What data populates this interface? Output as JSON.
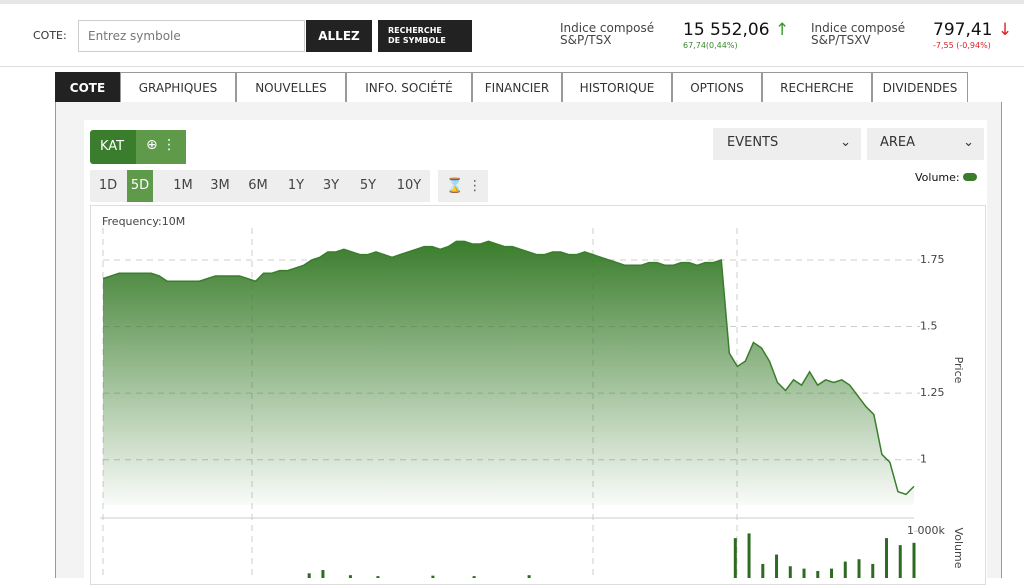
{
  "header": {
    "cote_label": "COTE:",
    "input_placeholder": "Entrez symbole",
    "go_button": "ALLEZ",
    "search_button": [
      "RECHERCHE",
      "DE SYMBOLE"
    ],
    "indices": [
      {
        "name": "Indice composé",
        "symbol": "S&P/TSX",
        "value": "15 552,06",
        "change": "67,74(0,44%)",
        "direction": "up"
      },
      {
        "name": "Indice composé",
        "symbol": "S&P/TSXV",
        "value": "797,41",
        "change": "-7,55 (-0,94%)",
        "direction": "down"
      }
    ]
  },
  "tabs": [
    "COTE",
    "GRAPHIQUES",
    "NOUVELLES",
    "INFO. SOCIÉTÉ",
    "FINANCIER",
    "HISTORIQUE",
    "OPTIONS",
    "RECHERCHE",
    "DIVIDENDES"
  ],
  "toolbar": {
    "symbol": "KAT",
    "periods": [
      "1D",
      "5D",
      "1M",
      "3M",
      "6M",
      "1Y",
      "3Y",
      "5Y",
      "10Y"
    ],
    "events": "EVENTS",
    "chart_style": "AREA",
    "volume_toggle": "Volume:"
  },
  "chart_data": [
    {
      "type": "area",
      "subtitle": "Frequency:10M",
      "y_label": "Price",
      "color": "#3a7d2c",
      "ylim": [
        0.83,
        1.87
      ],
      "yticks": [
        1,
        1.25,
        1.5,
        1.75
      ],
      "grid": true,
      "values": [
        1.68,
        1.69,
        1.7,
        1.7,
        1.7,
        1.7,
        1.7,
        1.69,
        1.67,
        1.67,
        1.67,
        1.67,
        1.67,
        1.68,
        1.69,
        1.69,
        1.69,
        1.69,
        1.68,
        1.67,
        1.7,
        1.7,
        1.71,
        1.71,
        1.72,
        1.73,
        1.75,
        1.76,
        1.78,
        1.78,
        1.79,
        1.78,
        1.77,
        1.77,
        1.78,
        1.77,
        1.76,
        1.77,
        1.78,
        1.79,
        1.8,
        1.8,
        1.79,
        1.8,
        1.82,
        1.82,
        1.81,
        1.81,
        1.82,
        1.81,
        1.8,
        1.8,
        1.79,
        1.78,
        1.77,
        1.77,
        1.78,
        1.78,
        1.77,
        1.77,
        1.78,
        1.77,
        1.76,
        1.75,
        1.74,
        1.73,
        1.73,
        1.73,
        1.74,
        1.74,
        1.73,
        1.73,
        1.74,
        1.74,
        1.73,
        1.74,
        1.74,
        1.75,
        1.4,
        1.35,
        1.37,
        1.44,
        1.42,
        1.37,
        1.29,
        1.26,
        1.3,
        1.28,
        1.33,
        1.28,
        1.3,
        1.29,
        1.3,
        1.28,
        1.24,
        1.2,
        1.17,
        1.02,
        0.99,
        0.88,
        0.87,
        0.9
      ]
    },
    {
      "type": "bar",
      "y_label": "Volume",
      "color": "#2e6b22",
      "ylim": [
        0,
        1300000
      ],
      "yticks": [
        {
          "value": 1000000,
          "label": "1 000k"
        }
      ],
      "values": [
        0,
        0,
        0,
        0,
        0,
        0,
        0,
        0,
        0,
        0,
        0,
        0,
        0,
        0,
        0,
        100000,
        170000,
        0,
        60000,
        0,
        40000,
        0,
        0,
        0,
        50000,
        0,
        0,
        40000,
        0,
        0,
        0,
        60000,
        0,
        0,
        0,
        0,
        0,
        0,
        0,
        0,
        0,
        0,
        0,
        0,
        0,
        0,
        850000,
        950000,
        300000,
        500000,
        250000,
        200000,
        150000,
        200000,
        350000,
        400000,
        300000,
        850000,
        700000,
        750000
      ]
    }
  ]
}
